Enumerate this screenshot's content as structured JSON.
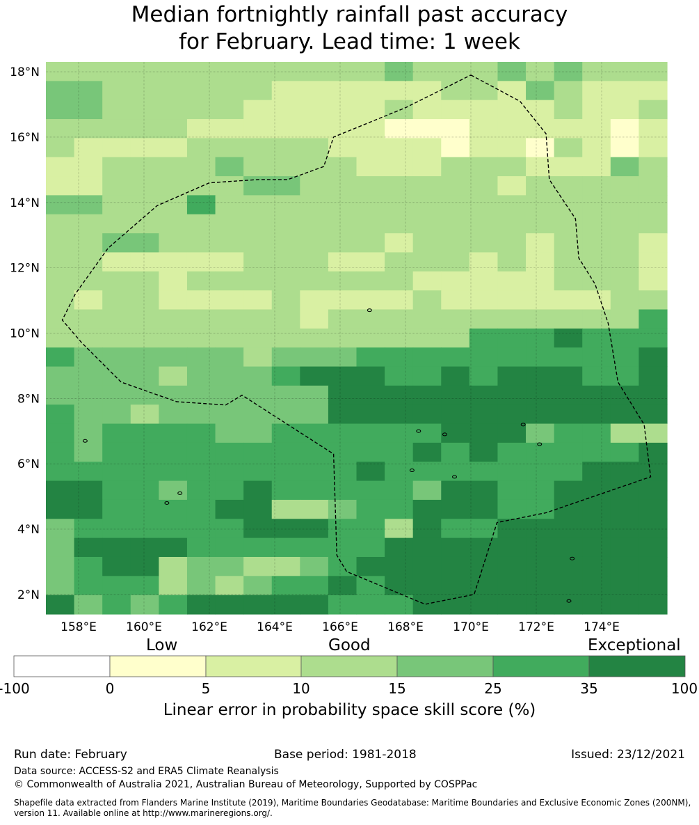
{
  "title_line1": "Median fortnightly rainfall past accuracy",
  "title_line2": "for February. Lead time: 1 week",
  "map": {
    "lon_range": [
      157,
      176
    ],
    "lat_range": [
      1.4,
      18.3
    ],
    "x_ticks": [
      "158°E",
      "160°E",
      "162°E",
      "164°E",
      "166°E",
      "168°E",
      "170°E",
      "172°E",
      "174°E"
    ],
    "y_ticks": [
      "18°N",
      "16°N",
      "14°N",
      "12°N",
      "10°N",
      "8°N",
      "6°N",
      "4°N",
      "2°N"
    ],
    "palette": [
      "#ffffff",
      "#ffffcc",
      "#d9f0a3",
      "#addd8e",
      "#78c679",
      "#41ab5d",
      "#238443"
    ],
    "grid_rows": [
      "3333333333334333434333",
      "4433333322222233243222",
      "4433333222223222223223",
      "3333322222221112222212",
      "3222233333222212213212",
      "2233334333322233322243",
      "2233333443333333233333",
      "4433353333333333333333",
      "3333333333333333333333",
      "3344333333332333323332",
      "3322222333223332323332",
      "3333233333333222223332",
      "3233222232222322222233",
      "3333333332333333333335",
      "3333333333333335556555",
      "5444444344455555555556",
      "4444344456665565666556",
      "4444444444666666666666",
      "5443444444666666666666",
      "5455554455555566645533",
      "5455555555555656555556",
      "5555555555565555555666",
      "6655455655555466556666",
      "6655556633455666556666",
      "4555555666553655666666",
      "4666655555556666666666",
      "4566344334566666666666",
      "4555343455656666666666",
      "6454566666555666666666"
    ],
    "eez_boundary": [
      [
        170.0,
        17.9
      ],
      [
        171.5,
        17.1
      ],
      [
        172.3,
        16.1
      ],
      [
        172.4,
        14.7
      ],
      [
        173.2,
        13.5
      ],
      [
        173.3,
        12.3
      ],
      [
        173.8,
        11.5
      ],
      [
        174.2,
        10.3
      ],
      [
        174.5,
        8.5
      ],
      [
        175.3,
        7.2
      ],
      [
        175.5,
        5.6
      ],
      [
        172.3,
        4.5
      ],
      [
        170.8,
        4.2
      ],
      [
        170.1,
        2.0
      ],
      [
        168.6,
        1.7
      ],
      [
        166.2,
        2.7
      ],
      [
        165.9,
        3.2
      ],
      [
        165.8,
        6.3
      ],
      [
        163.0,
        8.1
      ],
      [
        162.5,
        7.8
      ],
      [
        161.0,
        7.9
      ],
      [
        159.3,
        8.5
      ],
      [
        158.1,
        9.7
      ],
      [
        157.5,
        10.4
      ],
      [
        157.9,
        11.2
      ],
      [
        158.9,
        12.6
      ],
      [
        160.4,
        13.9
      ],
      [
        162.0,
        14.6
      ],
      [
        163.5,
        14.7
      ],
      [
        164.4,
        14.7
      ],
      [
        165.5,
        15.1
      ],
      [
        165.8,
        16.0
      ],
      [
        168.0,
        16.9
      ],
      [
        170.0,
        17.9
      ]
    ]
  },
  "colorbar": {
    "category_labels": [
      "Low",
      "Good",
      "Exceptional"
    ],
    "colors": [
      "#ffffff",
      "#ffffcc",
      "#d9f0a3",
      "#addd8e",
      "#78c679",
      "#41ab5d",
      "#238443"
    ],
    "ticks": [
      "-100",
      "0",
      "5",
      "10",
      "15",
      "25",
      "35",
      "100"
    ],
    "title": "Linear error in probability space skill score (%)"
  },
  "footer": {
    "run_date": "Run date: February",
    "base_period": "Base period: 1981-2018",
    "issued": "Issued: 23/12/2021",
    "data_source": "Data source: ACCESS-S2 and ERA5 Climate Reanalysis",
    "copyright": "© Commonwealth of Australia 2021, Australian Bureau of Meteorology, Supported by COSPPac",
    "shapefile": "Shapefile data extracted from Flanders Marine Institute (2019), Maritime Boundaries Geodatabase: Maritime Boundaries and Exclusive Economic Zones (200NM), version 11. Available online at http://www.marineregions.org/."
  }
}
